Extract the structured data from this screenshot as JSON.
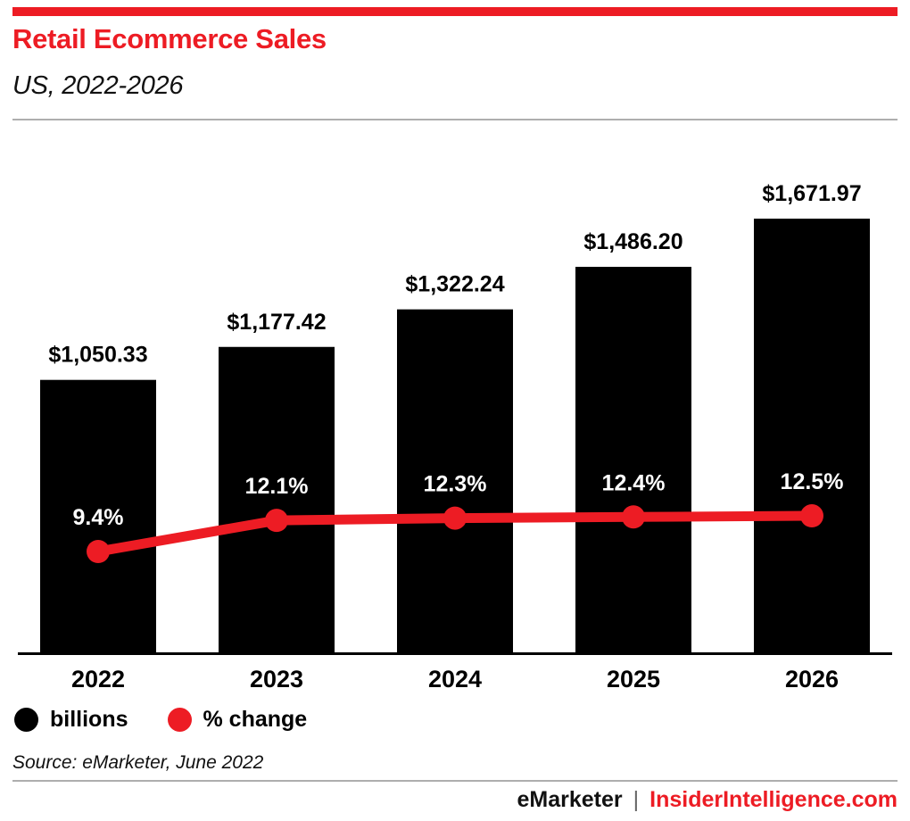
{
  "header": {
    "title": "Retail Ecommerce Sales",
    "subtitle": "US, 2022-2026"
  },
  "chart_data": {
    "type": "bar",
    "categories": [
      "2022",
      "2023",
      "2024",
      "2025",
      "2026"
    ],
    "series": [
      {
        "name": "billions",
        "type": "bar",
        "values": [
          1050.33,
          1177.42,
          1322.24,
          1486.2,
          1671.97
        ],
        "labels": [
          "$1,050.33",
          "$1,177.42",
          "$1,322.24",
          "$1,486.20",
          "$1,671.97"
        ],
        "color": "#000000"
      },
      {
        "name": "% change",
        "type": "line",
        "values": [
          9.4,
          12.1,
          12.3,
          12.4,
          12.5
        ],
        "labels": [
          "9.4%",
          "12.1%",
          "12.3%",
          "12.4%",
          "12.5%"
        ],
        "color": "#ed1c24"
      }
    ],
    "title": "Retail Ecommerce Sales",
    "subtitle": "US, 2022-2026",
    "xlabel": "",
    "ylabel": "",
    "grid": false,
    "legend_position": "bottom-left"
  },
  "legend": {
    "items": [
      {
        "label": "billions",
        "color": "#000000"
      },
      {
        "label": "% change",
        "color": "#ed1c24"
      }
    ]
  },
  "source": "Source: eMarketer, June 2022",
  "footer": {
    "brand_left": "eMarketer",
    "separator": "|",
    "brand_right": "InsiderIntelligence.com"
  },
  "colors": {
    "accent": "#ed1c24",
    "bar": "#000000",
    "rule": "#aeaeae",
    "text": "#000000"
  }
}
